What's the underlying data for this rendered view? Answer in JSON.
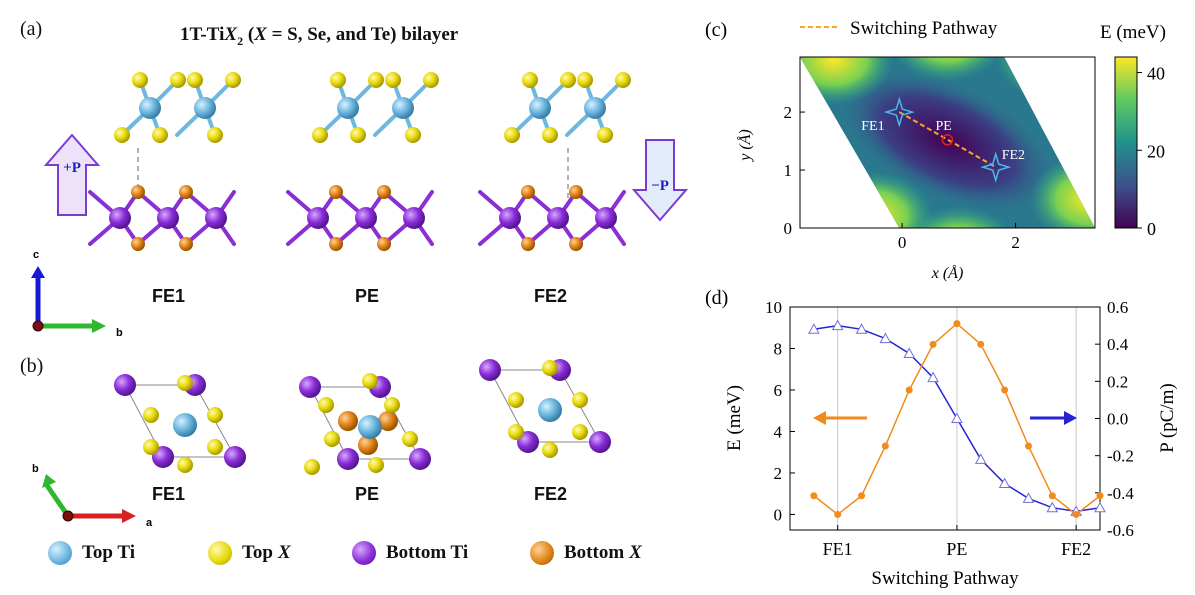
{
  "panel_a": {
    "label": "(a)",
    "title_prefix": "1T-Ti",
    "title_X": "X",
    "title_sub": "2",
    "title_paren_open": " (",
    "title_X2": "X",
    "title_rest": " = S, Se, and Te) bilayer",
    "structures": [
      "FE1",
      "PE",
      "FE2"
    ],
    "plusP": "+P",
    "minusP": "−P",
    "axes": {
      "up": "c",
      "right": "b"
    }
  },
  "panel_b": {
    "label": "(b)",
    "structures": [
      "FE1",
      "PE",
      "FE2"
    ],
    "axes": {
      "up": "b",
      "right": "a"
    }
  },
  "legend": [
    {
      "label_pre": "Top Ti",
      "label_italic": "",
      "color": "#6db7e0"
    },
    {
      "label_pre": "Top ",
      "label_italic": "X",
      "color": "#e8d90c"
    },
    {
      "label_pre": "Bottom Ti",
      "label_italic": "",
      "color": "#8a2ed6"
    },
    {
      "label_pre": "Bottom ",
      "label_italic": "X",
      "color": "#e08417"
    }
  ],
  "colors": {
    "top_ti": "#6db7e0",
    "top_x": "#e8d90c",
    "bot_ti": "#8a2ed6",
    "bot_x": "#e08417",
    "energy": "#f28a1c",
    "polarization": "#2424d6"
  },
  "chart_data": [
    {
      "type": "heatmap",
      "panel_label": "(c)",
      "legend_label": "Switching Pathway",
      "colorbar_label": "E (meV)",
      "colorbar_ticks": [
        0,
        20,
        40
      ],
      "colorbar_range": [
        0,
        44
      ],
      "xlabel": "x (Å)",
      "ylabel": "y (Å)",
      "xticks": [
        0,
        2
      ],
      "yticks": [
        0,
        1,
        2
      ],
      "xlim": [
        -1.8,
        3.4
      ],
      "ylim": [
        0,
        2.95
      ],
      "points": [
        {
          "label": "FE1",
          "x": -0.05,
          "y": 2.0
        },
        {
          "label": "PE",
          "x": 0.8,
          "y": 1.52
        },
        {
          "label": "FE2",
          "x": 1.65,
          "y": 1.05
        }
      ]
    },
    {
      "type": "line",
      "panel_label": "(d)",
      "xlabel": "Switching Pathway",
      "ylabel_left": "E (meV)",
      "ylabel_right": "P (pC/m)",
      "categories_labeled": [
        "FE1",
        "PE",
        "FE2"
      ],
      "x": [
        -1,
        0,
        1,
        2,
        3,
        4,
        5,
        6,
        7,
        8,
        9,
        10,
        11,
        12
      ],
      "ylim_left": [
        -0.75,
        10
      ],
      "ylim_right": [
        -0.6,
        0.6
      ],
      "yticks_left": [
        0,
        2,
        4,
        6,
        8,
        10
      ],
      "yticks_right": [
        "0.6",
        "0.4",
        "0.2",
        "0.0",
        "-0.2",
        "-0.4",
        "-0.6"
      ],
      "series": [
        {
          "axis": "left",
          "values": [
            0.9,
            0.0,
            0.9,
            3.3,
            6.0,
            8.2,
            9.2,
            8.2,
            6.0,
            3.3,
            0.9,
            0.0,
            0.9
          ],
          "x": [
            0,
            1,
            2,
            3,
            4,
            5,
            6,
            7,
            8,
            9,
            10,
            11,
            12
          ],
          "marker": "circle"
        },
        {
          "axis": "right",
          "values": [
            0.48,
            0.5,
            0.48,
            0.43,
            0.35,
            0.22,
            0.0,
            -0.22,
            -0.35,
            -0.43,
            -0.48,
            -0.5,
            -0.48
          ],
          "x": [
            0,
            1,
            2,
            3,
            4,
            5,
            6,
            7,
            8,
            9,
            10,
            11,
            12
          ],
          "marker": "triangle"
        }
      ],
      "vlines": [
        1,
        6,
        11
      ]
    }
  ]
}
